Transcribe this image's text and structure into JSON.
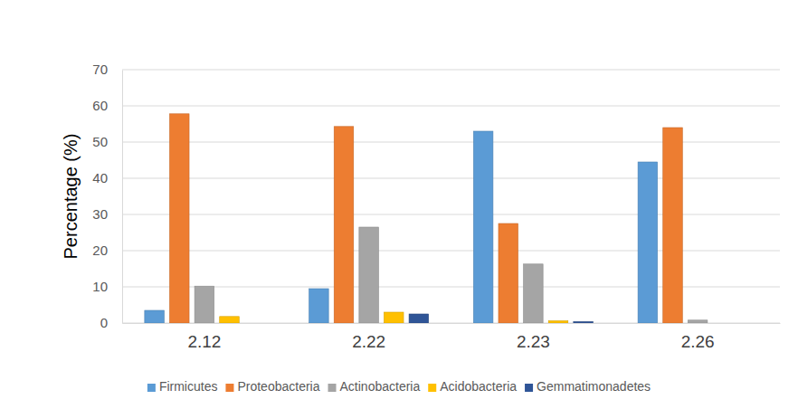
{
  "chart_data": {
    "type": "bar",
    "categories": [
      "2.12",
      "2.22",
      "2.23",
      "2.26"
    ],
    "series": [
      {
        "name": "Firmicutes",
        "color": "#5b9bd5",
        "values": [
          3.5,
          9.5,
          53,
          44.5
        ]
      },
      {
        "name": "Proteobacteria",
        "color": "#ed7d31",
        "values": [
          57.8,
          54.3,
          27.5,
          54
        ]
      },
      {
        "name": "Actinobacteria",
        "color": "#a5a5a5",
        "values": [
          10.2,
          26.5,
          16.3,
          0.8
        ]
      },
      {
        "name": "Acidobacteria",
        "color": "#ffc000",
        "values": [
          1.8,
          3.0,
          0.6,
          0
        ]
      },
      {
        "name": "Gemmatimonadetes",
        "color": "#2f5597",
        "values": [
          0,
          2.5,
          0.4,
          0
        ]
      }
    ],
    "y_label": "Percentage (%)",
    "ylim": [
      0,
      70
    ],
    "yticks": [
      0,
      10,
      20,
      30,
      40,
      50,
      60,
      70
    ],
    "grid": true,
    "legend": "bottom"
  }
}
